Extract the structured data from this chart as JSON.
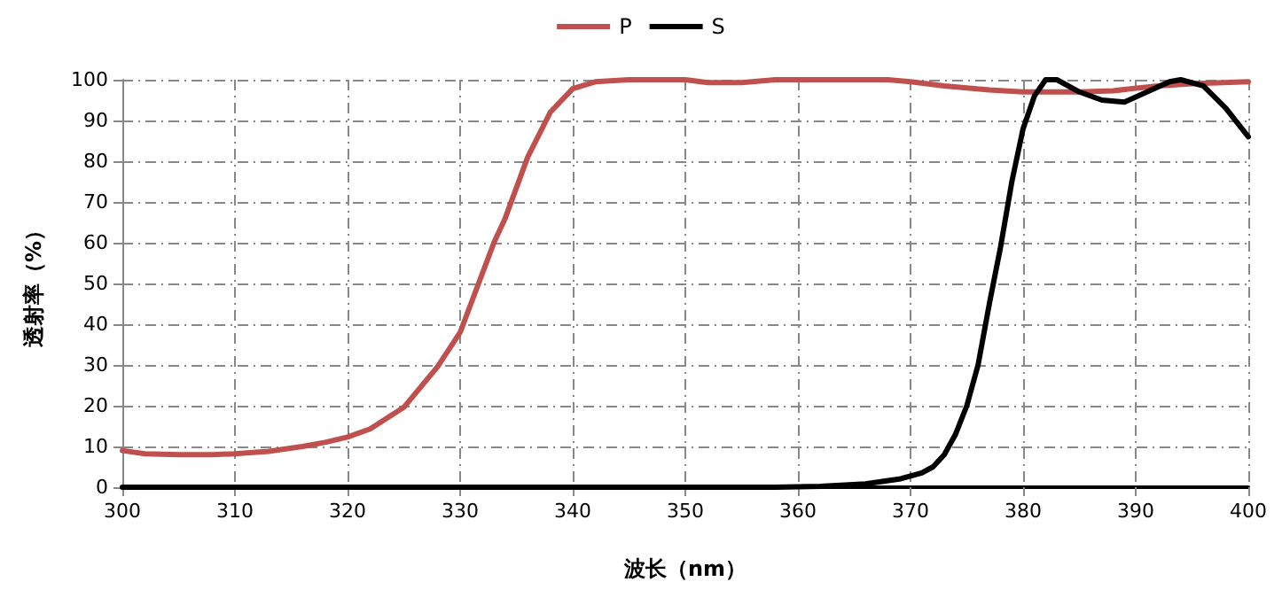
{
  "chart_data": {
    "type": "line",
    "xlabel": "波长（nm）",
    "ylabel": "透射率（%）",
    "xlim": [
      300,
      400
    ],
    "xticks": [
      300,
      310,
      320,
      330,
      340,
      350,
      360,
      370,
      380,
      390,
      400
    ],
    "ylim": [
      0,
      100
    ],
    "yticks": [
      0,
      10,
      20,
      30,
      40,
      50,
      60,
      70,
      80,
      90,
      100
    ],
    "grid": true,
    "legend": "top",
    "marker": "none",
    "line_style": "solid",
    "series": [
      {
        "name": "P",
        "color": "#c0504d",
        "x": [
          300,
          302,
          305,
          308,
          310,
          313,
          316,
          318,
          320,
          322,
          325,
          328,
          330,
          333,
          334,
          336,
          338,
          340,
          342,
          345,
          350,
          352,
          355,
          358,
          362,
          368,
          370,
          373,
          377,
          380,
          385,
          388,
          392,
          395,
          400
        ],
        "values": [
          9,
          8.2,
          8,
          8,
          8.2,
          8.8,
          10,
          11,
          12.3,
          14.3,
          19.6,
          29.6,
          38,
          60,
          66,
          81,
          92,
          97.8,
          99.5,
          100,
          100,
          99.3,
          99.3,
          100,
          100,
          100,
          99.5,
          98.5,
          97.5,
          97,
          97,
          97.3,
          98.5,
          99,
          99.5
        ]
      },
      {
        "name": "S",
        "color": "#000000",
        "x": [
          300,
          358,
          362,
          366,
          369,
          371,
          372,
          373,
          374,
          375,
          376,
          377,
          378,
          379,
          380,
          381,
          382,
          383,
          385,
          387,
          389,
          391,
          393,
          394,
          396,
          398,
          400
        ],
        "values": [
          0,
          0,
          0.2,
          0.8,
          2,
          3.5,
          5,
          8,
          13,
          20,
          30,
          45,
          59,
          75,
          88,
          96,
          100,
          100,
          97,
          95,
          94.5,
          97,
          99.5,
          100,
          98.5,
          93,
          86
        ]
      }
    ]
  }
}
